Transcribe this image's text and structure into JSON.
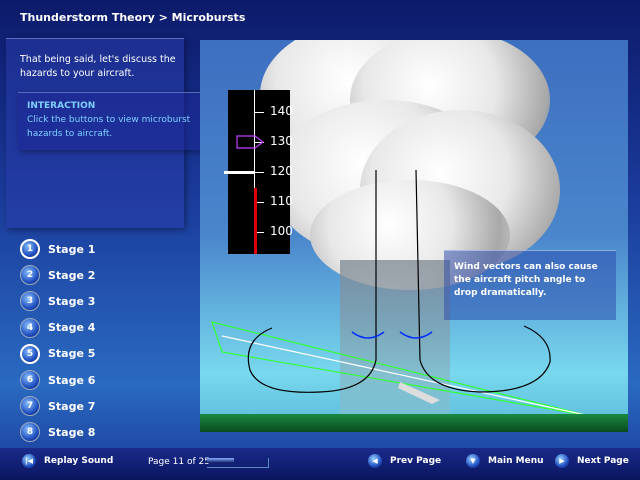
{
  "header": {
    "breadcrumb": "Thunderstorm Theory > Microbursts"
  },
  "intro": {
    "text": "That being said, let's discuss the hazards to your aircraft."
  },
  "interaction": {
    "label": "INTERACTION",
    "text": "Click the buttons to view microburst hazards to aircraft."
  },
  "stages": [
    {
      "num": "1",
      "label": "Stage 1",
      "selected": true
    },
    {
      "num": "2",
      "label": "Stage 2",
      "selected": false
    },
    {
      "num": "3",
      "label": "Stage 3",
      "selected": false
    },
    {
      "num": "4",
      "label": "Stage 4",
      "selected": false
    },
    {
      "num": "5",
      "label": "Stage 5",
      "selected": true
    },
    {
      "num": "6",
      "label": "Stage 6",
      "selected": false
    },
    {
      "num": "7",
      "label": "Stage 7",
      "selected": false
    },
    {
      "num": "8",
      "label": "Stage 8",
      "selected": false
    }
  ],
  "airspeed": {
    "ticks": [
      "140",
      "130",
      "120",
      "110",
      "100"
    ],
    "bug": 130,
    "current": 120
  },
  "note": {
    "text": "Wind vectors can also cause the aircraft pitch angle to drop dramatically."
  },
  "footer": {
    "replay": "Replay Sound",
    "page": "Page 11 of 25",
    "progress_percent": 44,
    "prev": "Prev Page",
    "menu": "Main Menu",
    "next": "Next Page"
  }
}
